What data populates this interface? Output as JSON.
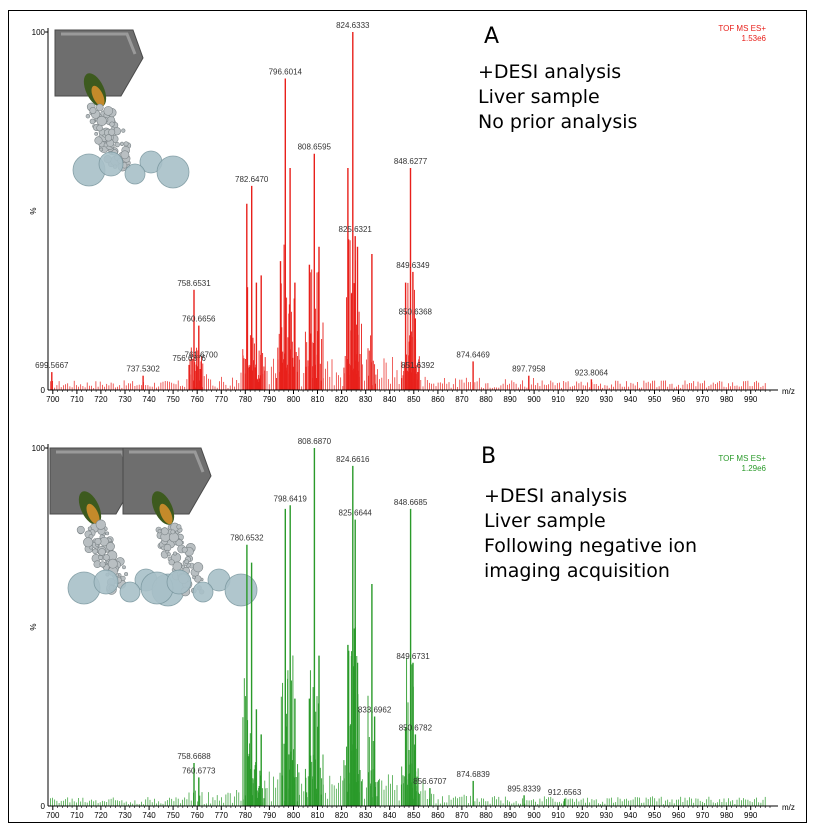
{
  "charts": [
    {
      "id": "A",
      "color": "#e8201b",
      "letter": "A",
      "instrument": "TOF MS ES+",
      "intensity": "1.53e6",
      "annotation": [
        "+DESI analysis",
        "Liver sample",
        "No prior analysis"
      ],
      "ylabel": "%",
      "ytick_labels": [
        "100",
        "0"
      ],
      "xunit": "m/z",
      "icon_count": 1
    },
    {
      "id": "B",
      "color": "#2a9a2a",
      "letter": "B",
      "instrument": "TOF MS ES+",
      "intensity": "1.29e6",
      "annotation": [
        "+DESI analysis",
        "Liver sample",
        "Following negative ion",
        "imaging acquisition"
      ],
      "ylabel": "%",
      "ytick_labels": [
        "100",
        "0"
      ],
      "xunit": "m/z",
      "icon_count": 2
    }
  ],
  "chart_data": [
    {
      "type": "bar",
      "title": "",
      "xlabel": "m/z",
      "ylabel": "%",
      "xlim": [
        698,
        998
      ],
      "ylim": [
        0,
        100
      ],
      "xticks": [
        700,
        710,
        720,
        730,
        740,
        750,
        760,
        770,
        780,
        790,
        800,
        810,
        820,
        830,
        840,
        850,
        860,
        870,
        880,
        890,
        900,
        910,
        920,
        930,
        940,
        950,
        960,
        970,
        980,
        990
      ],
      "peaks": [
        {
          "mz": 699.5667,
          "value": 5,
          "label": "699.5667"
        },
        {
          "mz": 737.5302,
          "value": 4,
          "label": "737.5302"
        },
        {
          "mz": 756.6376,
          "value": 7,
          "label": "756.6376"
        },
        {
          "mz": 758.6531,
          "value": 28,
          "label": "758.6531"
        },
        {
          "mz": 760.6656,
          "value": 18,
          "label": "760.6656"
        },
        {
          "mz": 761.67,
          "value": 8,
          "label": "761.6700"
        },
        {
          "mz": 782.647,
          "value": 57,
          "label": "782.6470"
        },
        {
          "mz": 780.6,
          "value": 52,
          "label": ""
        },
        {
          "mz": 784.6,
          "value": 30,
          "label": ""
        },
        {
          "mz": 786.6,
          "value": 32,
          "label": ""
        },
        {
          "mz": 794.6,
          "value": 36,
          "label": ""
        },
        {
          "mz": 796.6014,
          "value": 87,
          "label": "796.6014"
        },
        {
          "mz": 798.6,
          "value": 62,
          "label": ""
        },
        {
          "mz": 800.6,
          "value": 30,
          "label": ""
        },
        {
          "mz": 806.6,
          "value": 35,
          "label": ""
        },
        {
          "mz": 808.6595,
          "value": 66,
          "label": "808.6595"
        },
        {
          "mz": 810.6,
          "value": 40,
          "label": ""
        },
        {
          "mz": 822.6,
          "value": 62,
          "label": ""
        },
        {
          "mz": 824.6333,
          "value": 100,
          "label": "824.6333"
        },
        {
          "mz": 825.6321,
          "value": 43,
          "label": "825.6321"
        },
        {
          "mz": 826.6,
          "value": 40,
          "label": ""
        },
        {
          "mz": 832.6,
          "value": 38,
          "label": ""
        },
        {
          "mz": 846.6,
          "value": 30,
          "label": ""
        },
        {
          "mz": 848.6277,
          "value": 62,
          "label": "848.6277"
        },
        {
          "mz": 849.6349,
          "value": 33,
          "label": "849.6349"
        },
        {
          "mz": 850.6368,
          "value": 20,
          "label": "850.6368"
        },
        {
          "mz": 851.6392,
          "value": 5,
          "label": "851.6392"
        },
        {
          "mz": 874.6469,
          "value": 8,
          "label": "874.6469"
        },
        {
          "mz": 897.7958,
          "value": 4,
          "label": "897.7958"
        },
        {
          "mz": 923.8064,
          "value": 3,
          "label": "923.8064"
        }
      ]
    },
    {
      "type": "bar",
      "title": "",
      "xlabel": "m/z",
      "ylabel": "%",
      "xlim": [
        698,
        998
      ],
      "ylim": [
        0,
        100
      ],
      "xticks": [
        700,
        710,
        720,
        730,
        740,
        750,
        760,
        770,
        780,
        790,
        800,
        810,
        820,
        830,
        840,
        850,
        860,
        870,
        880,
        890,
        900,
        910,
        920,
        930,
        940,
        950,
        960,
        970,
        980,
        990
      ],
      "peaks": [
        {
          "mz": 758.6688,
          "value": 12,
          "label": "758.6688"
        },
        {
          "mz": 760.6773,
          "value": 8,
          "label": "760.6773"
        },
        {
          "mz": 780.6532,
          "value": 73,
          "label": "780.6532"
        },
        {
          "mz": 782.6,
          "value": 68,
          "label": ""
        },
        {
          "mz": 784.6,
          "value": 27,
          "label": ""
        },
        {
          "mz": 786.6,
          "value": 20,
          "label": ""
        },
        {
          "mz": 796.6,
          "value": 83,
          "label": ""
        },
        {
          "mz": 798.6419,
          "value": 84,
          "label": "798.6419"
        },
        {
          "mz": 800.6,
          "value": 30,
          "label": ""
        },
        {
          "mz": 806.6,
          "value": 30,
          "label": ""
        },
        {
          "mz": 808.687,
          "value": 100,
          "label": "808.6870"
        },
        {
          "mz": 810.6,
          "value": 42,
          "label": ""
        },
        {
          "mz": 822.6,
          "value": 45,
          "label": ""
        },
        {
          "mz": 824.6616,
          "value": 95,
          "label": "824.6616"
        },
        {
          "mz": 825.6644,
          "value": 80,
          "label": "825.6644"
        },
        {
          "mz": 826.6,
          "value": 40,
          "label": ""
        },
        {
          "mz": 832.6,
          "value": 62,
          "label": ""
        },
        {
          "mz": 833.6962,
          "value": 25,
          "label": "833.6962"
        },
        {
          "mz": 846.6,
          "value": 22,
          "label": ""
        },
        {
          "mz": 848.6685,
          "value": 83,
          "label": "848.6685"
        },
        {
          "mz": 849.6731,
          "value": 40,
          "label": "849.6731"
        },
        {
          "mz": 850.6782,
          "value": 20,
          "label": "850.6782"
        },
        {
          "mz": 856.6707,
          "value": 5,
          "label": "856.6707"
        },
        {
          "mz": 874.6839,
          "value": 7,
          "label": "874.6839"
        },
        {
          "mz": 895.8339,
          "value": 3,
          "label": "895.8339"
        },
        {
          "mz": 912.6563,
          "value": 2,
          "label": "912.6563"
        }
      ]
    }
  ]
}
